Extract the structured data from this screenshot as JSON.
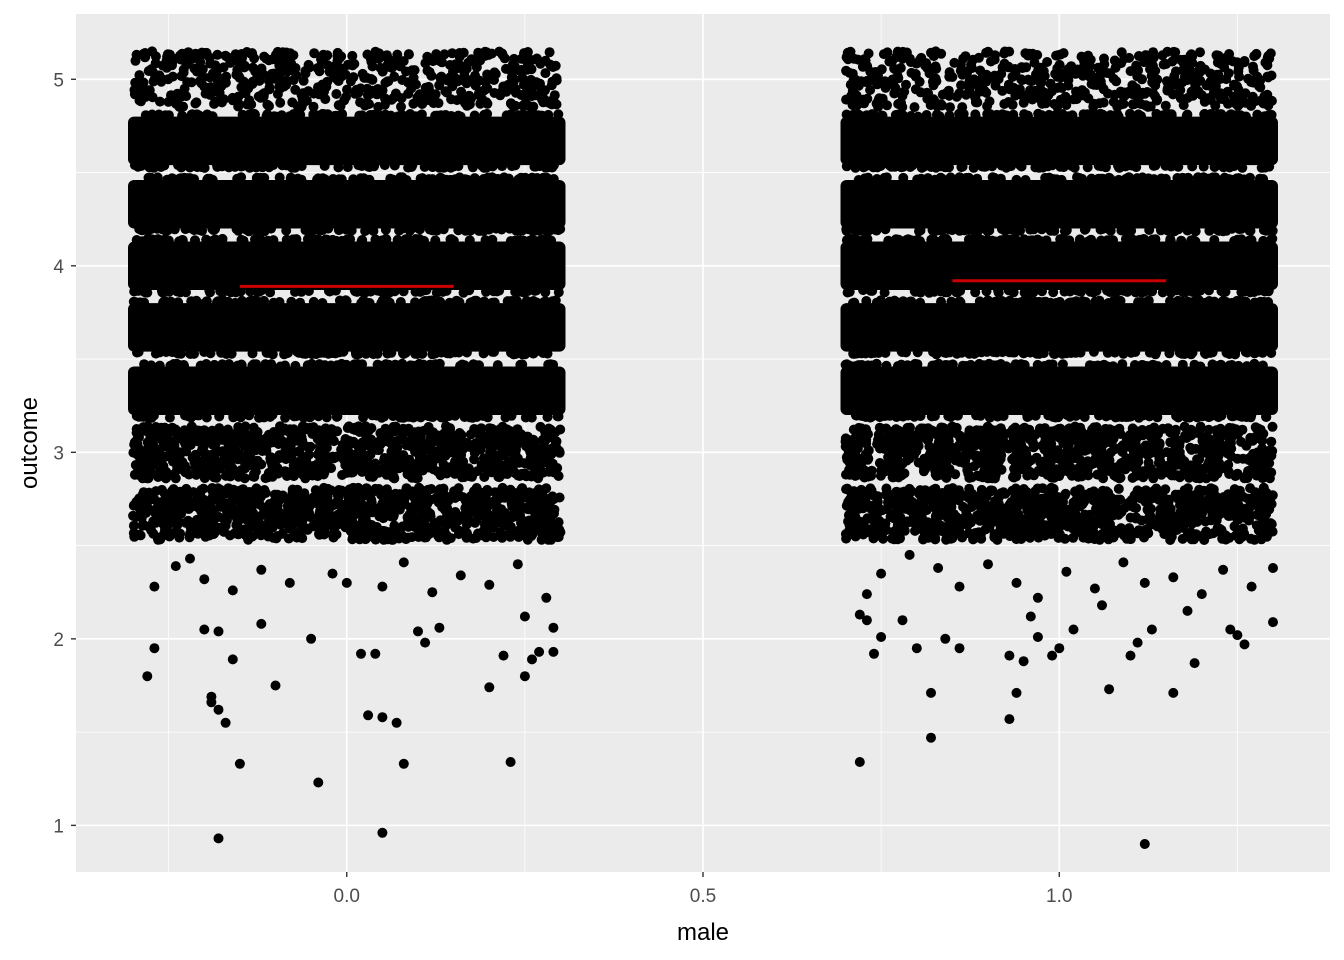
{
  "chart_data": {
    "type": "scatter",
    "title": "",
    "xlabel": "male",
    "ylabel": "outcome",
    "xlim": [
      -0.38,
      1.38
    ],
    "ylim": [
      0.75,
      5.35
    ],
    "x_ticks": [
      0.0,
      0.5,
      1.0
    ],
    "x_tick_labels": [
      "0.0",
      "0.5",
      "1.0"
    ],
    "y_ticks": [
      1,
      2,
      3,
      4,
      5
    ],
    "y_tick_labels": [
      "1",
      "2",
      "3",
      "4",
      "5"
    ],
    "grid": true,
    "background": "#ebebeb",
    "gridline_color": "#ffffff",
    "point_color": "#000000",
    "mean_line_color": "#cc0000",
    "groups": [
      {
        "x": 0,
        "jitter_width": 0.3,
        "mean": 3.89,
        "mean_line_halfwidth": 0.15,
        "dense_bands": [
          3.33,
          3.67,
          4.0,
          4.33,
          4.67
        ],
        "medium_bands": [
          2.67,
          3.0
        ],
        "sparse_band": 5.0,
        "outliers": [
          [
            -0.28,
            1.8
          ],
          [
            -0.27,
            1.95
          ],
          [
            -0.2,
            2.05
          ],
          [
            -0.18,
            2.04
          ],
          [
            -0.19,
            1.66
          ],
          [
            -0.19,
            1.69
          ],
          [
            -0.18,
            1.62
          ],
          [
            -0.17,
            1.55
          ],
          [
            -0.16,
            1.89
          ],
          [
            -0.15,
            1.33
          ],
          [
            -0.1,
            1.75
          ],
          [
            -0.05,
            2.0
          ],
          [
            -0.04,
            1.23
          ],
          [
            -0.18,
            0.93
          ],
          [
            0.02,
            1.92
          ],
          [
            0.04,
            1.92
          ],
          [
            0.03,
            1.59
          ],
          [
            0.05,
            1.58
          ],
          [
            0.07,
            1.55
          ],
          [
            0.08,
            1.33
          ],
          [
            0.05,
            0.96
          ],
          [
            0.1,
            2.04
          ],
          [
            0.11,
            1.98
          ],
          [
            0.2,
            1.74
          ],
          [
            0.22,
            1.91
          ],
          [
            0.23,
            1.34
          ],
          [
            0.25,
            1.8
          ],
          [
            0.26,
            1.89
          ],
          [
            0.27,
            1.93
          ],
          [
            0.29,
            1.93
          ],
          [
            -0.27,
            2.28
          ],
          [
            -0.24,
            2.39
          ],
          [
            -0.22,
            2.43
          ],
          [
            -0.2,
            2.32
          ],
          [
            -0.16,
            2.26
          ],
          [
            -0.12,
            2.37
          ],
          [
            -0.08,
            2.3
          ],
          [
            -0.02,
            2.35
          ],
          [
            0.0,
            2.3
          ],
          [
            0.05,
            2.28
          ],
          [
            0.08,
            2.41
          ],
          [
            0.12,
            2.25
          ],
          [
            0.16,
            2.34
          ],
          [
            0.2,
            2.29
          ],
          [
            0.24,
            2.4
          ],
          [
            0.28,
            2.22
          ],
          [
            -0.12,
            2.08
          ],
          [
            0.13,
            2.06
          ],
          [
            0.25,
            2.12
          ],
          [
            0.29,
            2.06
          ]
        ]
      },
      {
        "x": 1,
        "jitter_width": 0.3,
        "mean": 3.92,
        "mean_line_halfwidth": 0.15,
        "dense_bands": [
          3.33,
          3.67,
          4.0,
          4.33,
          4.67
        ],
        "medium_bands": [
          2.67,
          3.0
        ],
        "sparse_band": 5.0,
        "outliers": [
          [
            0.72,
            2.13
          ],
          [
            0.73,
            2.1
          ],
          [
            0.74,
            1.92
          ],
          [
            0.75,
            2.01
          ],
          [
            0.72,
            1.34
          ],
          [
            0.78,
            2.1
          ],
          [
            0.8,
            1.95
          ],
          [
            0.82,
            1.71
          ],
          [
            0.82,
            1.47
          ],
          [
            0.84,
            2.0
          ],
          [
            0.86,
            1.95
          ],
          [
            0.93,
            1.91
          ],
          [
            0.93,
            1.57
          ],
          [
            0.94,
            1.71
          ],
          [
            0.95,
            1.88
          ],
          [
            0.97,
            2.01
          ],
          [
            0.99,
            1.91
          ],
          [
            1.0,
            1.95
          ],
          [
            1.02,
            2.05
          ],
          [
            1.07,
            1.73
          ],
          [
            1.1,
            1.91
          ],
          [
            1.11,
            1.98
          ],
          [
            1.13,
            2.05
          ],
          [
            1.12,
            0.9
          ],
          [
            1.16,
            1.71
          ],
          [
            1.19,
            1.87
          ],
          [
            1.24,
            2.05
          ],
          [
            1.25,
            2.02
          ],
          [
            1.26,
            1.97
          ],
          [
            1.3,
            2.09
          ],
          [
            0.73,
            2.24
          ],
          [
            0.75,
            2.35
          ],
          [
            0.79,
            2.45
          ],
          [
            0.83,
            2.38
          ],
          [
            0.86,
            2.28
          ],
          [
            0.9,
            2.4
          ],
          [
            0.94,
            2.3
          ],
          [
            0.97,
            2.22
          ],
          [
            1.01,
            2.36
          ],
          [
            1.05,
            2.27
          ],
          [
            1.09,
            2.41
          ],
          [
            1.12,
            2.3
          ],
          [
            1.16,
            2.33
          ],
          [
            1.2,
            2.24
          ],
          [
            1.23,
            2.37
          ],
          [
            1.27,
            2.28
          ],
          [
            1.3,
            2.38
          ],
          [
            0.96,
            2.12
          ],
          [
            1.06,
            2.18
          ],
          [
            1.18,
            2.15
          ]
        ]
      }
    ]
  }
}
